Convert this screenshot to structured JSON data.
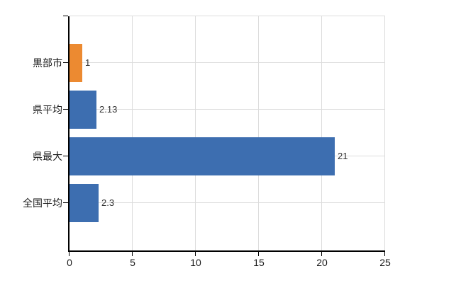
{
  "chart_data": {
    "type": "bar",
    "orientation": "horizontal",
    "title": "",
    "xlabel": "",
    "ylabel": "",
    "categories": [
      "黒部市",
      "県平均",
      "県最大",
      "全国平均"
    ],
    "values": [
      1,
      2.13,
      21,
      2.3
    ],
    "value_labels": [
      "1",
      "2.13",
      "21",
      "2.3"
    ],
    "bar_colors": [
      "#EC8A31",
      "#3D6EB0",
      "#3D6EB0",
      "#3D6EB0"
    ],
    "xlim": [
      0,
      25
    ],
    "x_tick_values": [
      0,
      5,
      10,
      15,
      20,
      25
    ],
    "x_tick_labels": [
      "0",
      "5",
      "10",
      "15",
      "20",
      "25"
    ],
    "grid": true,
    "legend": "none",
    "background": "#ffffff"
  },
  "colors": {
    "grid": "#dcdcdc",
    "axis": "#000000",
    "category_label": "#1a1a1a",
    "tick_label": "#1a1a1a",
    "value_label": "#333333"
  }
}
